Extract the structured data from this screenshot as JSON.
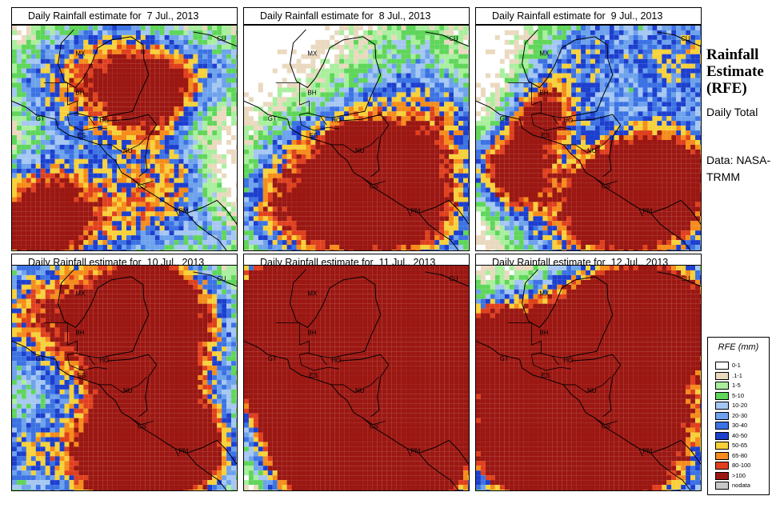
{
  "panels": [
    {
      "title": "Daily Rainfall estimate for  7 Jul., 2013",
      "seed": 7,
      "intensity": 1.0
    },
    {
      "title": "Daily Rainfall estimate for  8 Jul., 2013",
      "seed": 8,
      "intensity": 0.9
    },
    {
      "title": "Daily Rainfall estimate for  9 Jul., 2013",
      "seed": 9,
      "intensity": 1.1
    },
    {
      "title": "Daily Rainfall estimate for  10 Jul., 2013",
      "seed": 10,
      "intensity": 1.5
    },
    {
      "title": "Daily Rainfall estimate for  11 Jul., 2013",
      "seed": 11,
      "intensity": 1.9
    },
    {
      "title": "Daily Rainfall estimate for  12 Jul., 2013",
      "seed": 12,
      "intensity": 1.3
    }
  ],
  "country_labels": [
    "MX",
    "BH",
    "GT",
    "HO",
    "ES",
    "NU",
    "CS",
    "PM",
    "CU"
  ],
  "side": {
    "title": "Rainfall Estimate (RFE)",
    "period": "Daily Total",
    "source": "Data: NASA- TRMM"
  },
  "legend": {
    "title": "RFE (mm)",
    "items": [
      {
        "label": "0-1",
        "color": "#ffffff"
      },
      {
        "label": ".1-1",
        "color": "#ead9bf"
      },
      {
        "label": "1-5",
        "color": "#a9ef9e"
      },
      {
        "label": "5-10",
        "color": "#5fd65a"
      },
      {
        "label": "10-20",
        "color": "#a5c7f2"
      },
      {
        "label": "20-30",
        "color": "#6ea2ec"
      },
      {
        "label": "30-40",
        "color": "#3c72e3"
      },
      {
        "label": "40-50",
        "color": "#1d3fce"
      },
      {
        "label": "50-65",
        "color": "#f7d13b"
      },
      {
        "label": "65-80",
        "color": "#f58c1b"
      },
      {
        "label": "80-100",
        "color": "#e0401e"
      },
      {
        "label": ">100",
        "color": "#9b1712"
      },
      {
        "label": "nodata",
        "color": "#c8c8c8"
      }
    ]
  }
}
